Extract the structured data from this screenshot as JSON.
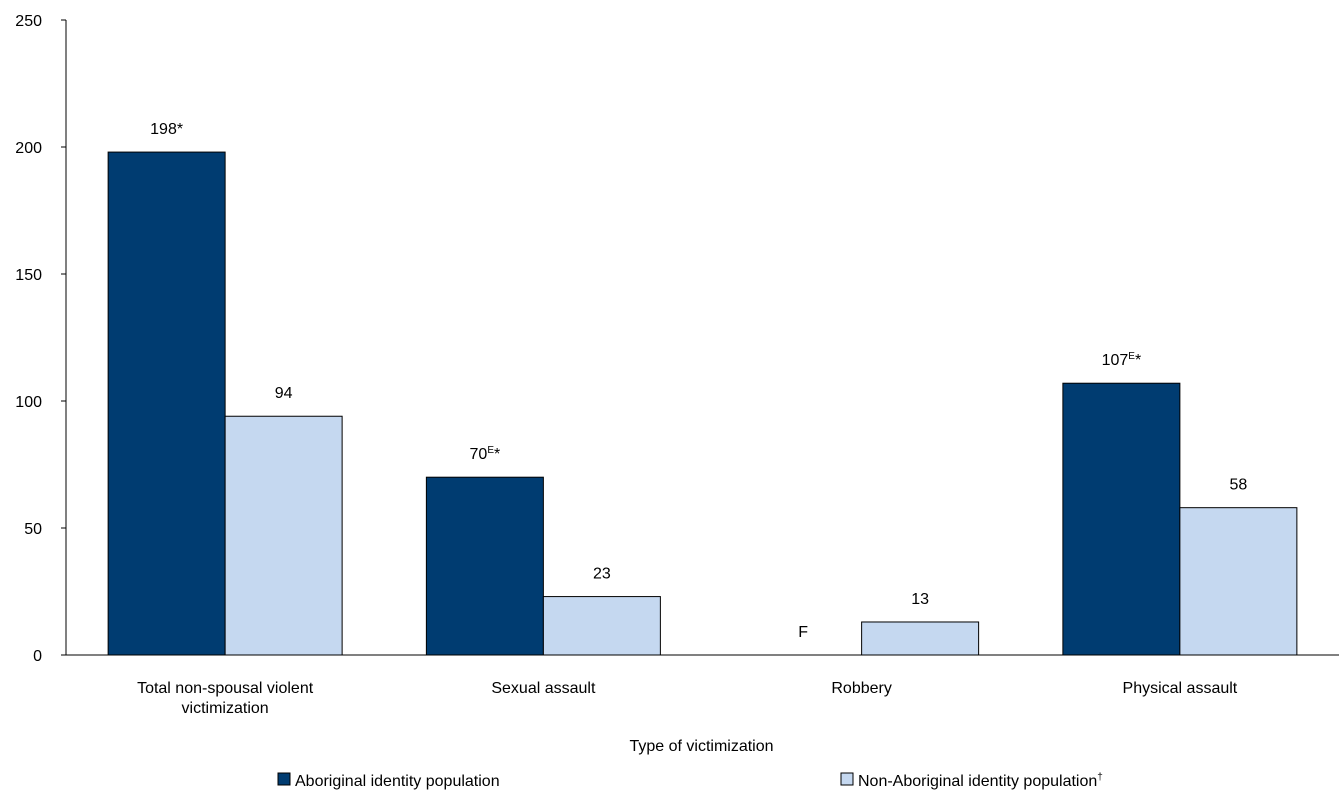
{
  "chart_data": {
    "type": "bar",
    "categories": [
      [
        "Total non-spousal violent",
        "victimization"
      ],
      [
        "Sexual assault"
      ],
      [
        "Robbery"
      ],
      [
        "Physical assault"
      ]
    ],
    "series": [
      {
        "name": "Aboriginal identity population",
        "name_sup": "",
        "color": "#003c71",
        "values": [
          198,
          70,
          null,
          107
        ],
        "labels": [
          {
            "text": "198",
            "sup": "",
            "suffix": "*"
          },
          {
            "text": "70",
            "sup": "E",
            "suffix": "*"
          },
          {
            "text": "F",
            "sup": "",
            "suffix": ""
          },
          {
            "text": "107",
            "sup": "E",
            "suffix": "*"
          }
        ]
      },
      {
        "name": "Non-Aboriginal identity population",
        "name_sup": "†",
        "color": "#c5d8f0",
        "values": [
          94,
          23,
          13,
          58
        ],
        "labels": [
          {
            "text": "94",
            "sup": "",
            "suffix": ""
          },
          {
            "text": "23",
            "sup": "",
            "suffix": ""
          },
          {
            "text": "13",
            "sup": "",
            "suffix": ""
          },
          {
            "text": "58",
            "sup": "",
            "suffix": ""
          }
        ]
      }
    ],
    "xlabel": "Type of victimization",
    "ylabel": "",
    "ylim": [
      0,
      250
    ],
    "yticks": [
      0,
      50,
      100,
      150,
      200,
      250
    ],
    "grid": false,
    "legend_position": "bottom"
  }
}
